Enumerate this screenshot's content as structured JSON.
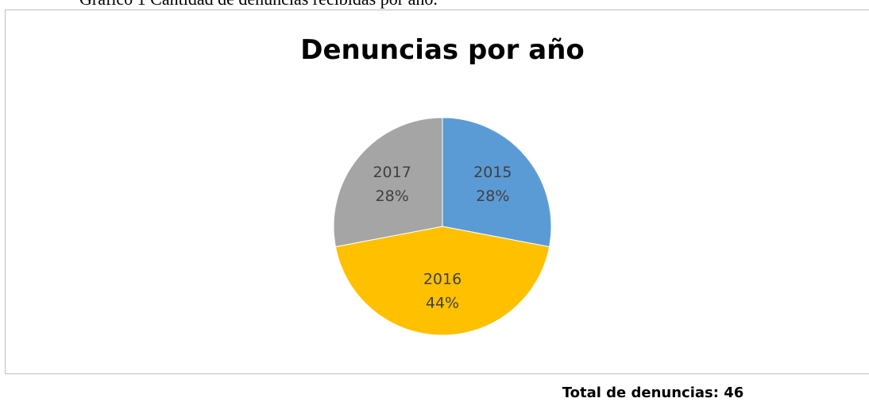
{
  "caption": "Gráfico 1 Cantidad de denuncias recibidas por año.",
  "chart_data": {
    "type": "pie",
    "title": "Denuncias por año",
    "categories": [
      "2015",
      "2016",
      "2017"
    ],
    "values": [
      28,
      44,
      28
    ],
    "value_labels": [
      "28%",
      "44%",
      "28%"
    ],
    "colors": [
      "#5b9bd5",
      "#ffc000",
      "#a5a5a5"
    ]
  },
  "footer": "Total de denuncias: 46"
}
